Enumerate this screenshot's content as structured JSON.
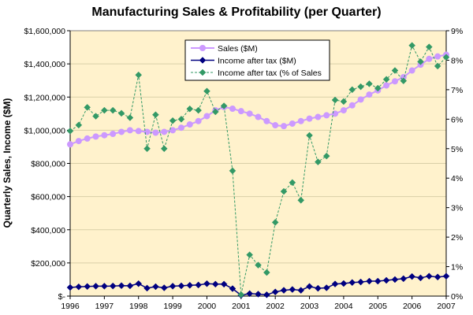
{
  "chart_data": {
    "type": "line",
    "title": "Manufacturing Sales & Profitability (per Quarter)",
    "ylabel": "Quarterly Sales, Income ($M)",
    "xlabel": "",
    "xlim": [
      1996,
      2007
    ],
    "ylim": [
      0,
      1600000
    ],
    "y2lim": [
      0,
      9
    ],
    "x_ticks": [
      "1996",
      "1997",
      "1998",
      "1999",
      "2000",
      "2001",
      "2002",
      "2003",
      "2004",
      "2005",
      "2006",
      "2007"
    ],
    "y_ticks": [
      "$-",
      "$200,000",
      "$400,000",
      "$600,000",
      "$800,000",
      "$1,000,000",
      "$1,200,000",
      "$1,400,000",
      "$1,600,000"
    ],
    "y2_ticks": [
      "0%",
      "1%",
      "2%",
      "3%",
      "4%",
      "5%",
      "6%",
      "7%",
      "8%",
      "9%"
    ],
    "legend_position": "top-center",
    "colors": {
      "sales": "#cc99ff",
      "income": "#000080",
      "pct": "#339966",
      "plot_bg": "#fff2cc"
    },
    "series": [
      {
        "name": "Sales ($M)",
        "axis": "left",
        "x": [
          1996,
          1996.25,
          1996.5,
          1996.75,
          1997,
          1997.25,
          1997.5,
          1997.75,
          1998,
          1998.25,
          1998.5,
          1998.75,
          1999,
          1999.25,
          1999.5,
          1999.75,
          2000,
          2000.25,
          2000.5,
          2000.75,
          2001,
          2001.25,
          2001.5,
          2001.75,
          2002,
          2002.25,
          2002.5,
          2002.75,
          2003,
          2003.25,
          2003.5,
          2003.75,
          2004,
          2004.25,
          2004.5,
          2004.75,
          2005,
          2005.25,
          2005.5,
          2005.75,
          2006,
          2006.25,
          2006.5,
          2006.75,
          2007
        ],
        "values": [
          915000,
          935000,
          950000,
          962000,
          970000,
          978000,
          990000,
          1000000,
          995000,
          990000,
          985000,
          990000,
          1000000,
          1015000,
          1035000,
          1055000,
          1085000,
          1120000,
          1140000,
          1130000,
          1115000,
          1100000,
          1080000,
          1055000,
          1030000,
          1025000,
          1040000,
          1055000,
          1070000,
          1080000,
          1090000,
          1100000,
          1120000,
          1150000,
          1185000,
          1215000,
          1240000,
          1270000,
          1295000,
          1320000,
          1360000,
          1395000,
          1430000,
          1445000,
          1455000
        ]
      },
      {
        "name": "Income after tax ($M)",
        "axis": "left",
        "x": [
          1996,
          1996.25,
          1996.5,
          1996.75,
          1997,
          1997.25,
          1997.5,
          1997.75,
          1998,
          1998.25,
          1998.5,
          1998.75,
          1999,
          1999.25,
          1999.5,
          1999.75,
          2000,
          2000.25,
          2000.5,
          2000.75,
          2001,
          2001.25,
          2001.5,
          2001.75,
          2002,
          2002.25,
          2002.5,
          2002.75,
          2003,
          2003.25,
          2003.5,
          2003.75,
          2004,
          2004.25,
          2004.5,
          2004.75,
          2005,
          2005.25,
          2005.5,
          2005.75,
          2006,
          2006.25,
          2006.5,
          2006.75,
          2007
        ],
        "values": [
          52000,
          56000,
          58000,
          60000,
          60000,
          61000,
          63000,
          62000,
          75000,
          48000,
          57000,
          50000,
          60000,
          62000,
          65000,
          67000,
          75000,
          72000,
          72000,
          45000,
          5000,
          15000,
          12000,
          8000,
          25000,
          35000,
          40000,
          35000,
          58000,
          47000,
          50000,
          73000,
          76000,
          82000,
          85000,
          90000,
          90000,
          95000,
          100000,
          105000,
          118000,
          110000,
          120000,
          115000,
          120000
        ]
      },
      {
        "name": "Income after tax (% of Sales",
        "axis": "right",
        "x": [
          1996,
          1996.25,
          1996.5,
          1996.75,
          1997,
          1997.25,
          1997.5,
          1997.75,
          1998,
          1998.25,
          1998.5,
          1998.75,
          1999,
          1999.25,
          1999.5,
          1999.75,
          2000,
          2000.25,
          2000.5,
          2000.75,
          2001,
          2001.25,
          2001.5,
          2001.75,
          2002,
          2002.25,
          2002.5,
          2002.75,
          2003,
          2003.25,
          2003.5,
          2003.75,
          2004,
          2004.25,
          2004.5,
          2004.75,
          2005,
          2005.25,
          2005.5,
          2005.75,
          2006,
          2006.25,
          2006.5,
          2006.75,
          2007
        ],
        "values": [
          5.6,
          5.8,
          6.4,
          6.1,
          6.3,
          6.3,
          6.2,
          6.05,
          7.5,
          5.0,
          6.15,
          5.0,
          5.95,
          6.0,
          6.35,
          6.3,
          6.95,
          6.25,
          6.45,
          4.25,
          0.05,
          1.4,
          1.05,
          0.8,
          2.5,
          3.55,
          3.85,
          3.25,
          5.45,
          4.55,
          4.75,
          6.65,
          6.6,
          7.0,
          7.1,
          7.2,
          7.05,
          7.35,
          7.65,
          7.3,
          8.5,
          7.95,
          8.45,
          7.8,
          8.1
        ]
      }
    ]
  }
}
